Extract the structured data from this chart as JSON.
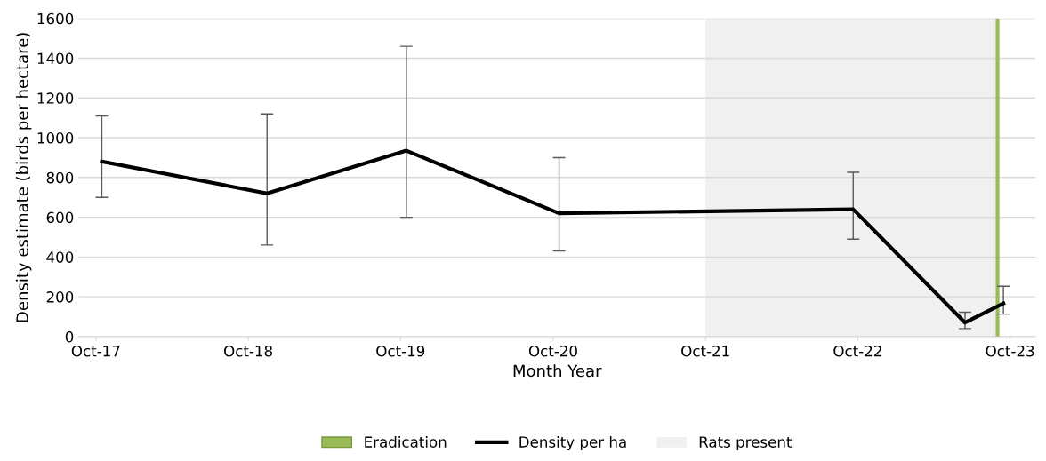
{
  "chart_data": {
    "type": "line",
    "xlabel": "Month Year",
    "ylabel": "Density estimate (birds per hectare)",
    "x": [
      "2017-10-15",
      "2018-11-15",
      "2019-10-15",
      "2020-10-15",
      "2022-09-20",
      "2023-06-15",
      "2023-09-15"
    ],
    "series": [
      {
        "name": "Density per ha",
        "color": "#000000",
        "values": [
          880,
          720,
          935,
          620,
          640,
          70,
          167
        ],
        "errors": [
          [
            700,
            1110
          ],
          [
            460,
            1120
          ],
          [
            600,
            1460
          ],
          [
            430,
            900
          ],
          [
            490,
            826
          ],
          [
            40,
            122
          ],
          [
            113,
            253
          ]
        ]
      }
    ],
    "xlim": [
      "2017-08-20",
      "2023-12-01"
    ],
    "xticks": [
      {
        "value": "2017-10-01",
        "label": "Oct-17"
      },
      {
        "value": "2018-10-01",
        "label": "Oct-18"
      },
      {
        "value": "2019-10-01",
        "label": "Oct-19"
      },
      {
        "value": "2020-10-01",
        "label": "Oct-20"
      },
      {
        "value": "2021-10-01",
        "label": "Oct-21"
      },
      {
        "value": "2022-10-01",
        "label": "Oct-22"
      },
      {
        "value": "2023-10-01",
        "label": "Oct-23"
      }
    ],
    "ylim": [
      0,
      1600
    ],
    "yticks": [
      0,
      200,
      400,
      600,
      800,
      1000,
      1200,
      1400,
      1600
    ],
    "grid": "y",
    "legend": "bottom",
    "marker": "none",
    "line_style": "solid",
    "ref_lines": [
      {
        "axis": "x",
        "value": "2023-09-01",
        "label": "Eradication",
        "color": "#9bbb59"
      }
    ],
    "bands": [
      {
        "axis": "x",
        "from": "2021-10-01",
        "to": "2023-09-01",
        "label": "Rats present",
        "color": "#f0f0f0"
      }
    ]
  }
}
